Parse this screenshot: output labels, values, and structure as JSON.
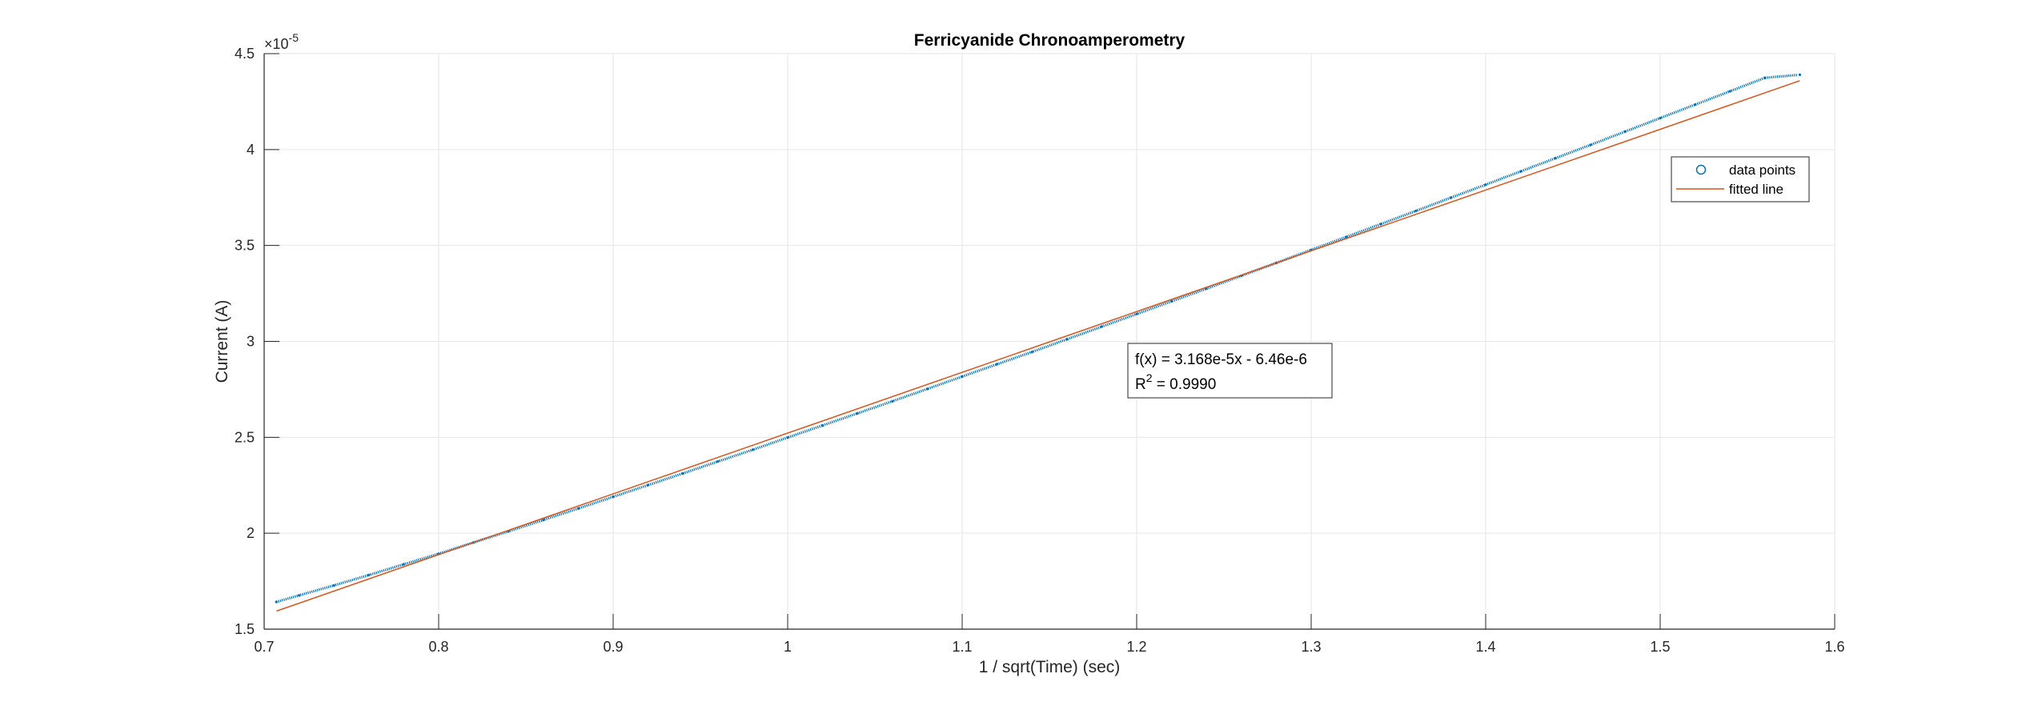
{
  "chart_data": {
    "type": "scatter",
    "title": "Ferricyanide Chronoamperometry",
    "xlabel": "1 / sqrt(Time) (sec)",
    "ylabel": "Current (A)",
    "exponent_base": "×10",
    "exponent_power": "-5",
    "xlim": [
      0.7,
      1.6
    ],
    "ylim": [
      1.5,
      4.5
    ],
    "y_scale_factor": 1e-05,
    "xticks": [
      "0.7",
      "0.8",
      "0.9",
      "1",
      "1.1",
      "1.2",
      "1.3",
      "1.4",
      "1.5",
      "1.6"
    ],
    "yticks": [
      "1.5",
      "2",
      "2.5",
      "3",
      "3.5",
      "4",
      "4.5"
    ],
    "grid": true,
    "legend_location": "upper right",
    "series": [
      {
        "name": "data points",
        "kind": "scatter",
        "marker": "circle",
        "color": "#0072BD",
        "x": [
          0.707,
          0.72,
          0.74,
          0.76,
          0.78,
          0.8,
          0.82,
          0.84,
          0.86,
          0.88,
          0.9,
          0.92,
          0.94,
          0.96,
          0.98,
          1.0,
          1.02,
          1.04,
          1.06,
          1.08,
          1.1,
          1.12,
          1.14,
          1.16,
          1.18,
          1.2,
          1.22,
          1.24,
          1.26,
          1.28,
          1.3,
          1.32,
          1.34,
          1.36,
          1.38,
          1.4,
          1.42,
          1.44,
          1.46,
          1.48,
          1.5,
          1.52,
          1.54,
          1.56,
          1.58
        ],
        "y": [
          1.642,
          1.676,
          1.728,
          1.782,
          1.838,
          1.893,
          1.952,
          2.01,
          2.069,
          2.129,
          2.19,
          2.251,
          2.312,
          2.374,
          2.435,
          2.499,
          2.562,
          2.625,
          2.688,
          2.752,
          2.817,
          2.881,
          2.945,
          3.011,
          3.077,
          3.143,
          3.209,
          3.275,
          3.342,
          3.409,
          3.477,
          3.544,
          3.612,
          3.68,
          3.749,
          3.817,
          3.886,
          3.955,
          4.024,
          4.094,
          4.164,
          4.234,
          4.304,
          4.374,
          4.39
        ]
      },
      {
        "name": "fitted line",
        "kind": "line",
        "color": "#D95319",
        "x": [
          0.707,
          1.58
        ],
        "y": [
          1.594,
          4.359
        ]
      }
    ],
    "annotation": {
      "line1": "f(x) = 3.168e-5x - 6.46e-6",
      "line2_prefix": "R",
      "line2_sup": "2",
      "line2_suffix": " = 0.9990"
    }
  }
}
